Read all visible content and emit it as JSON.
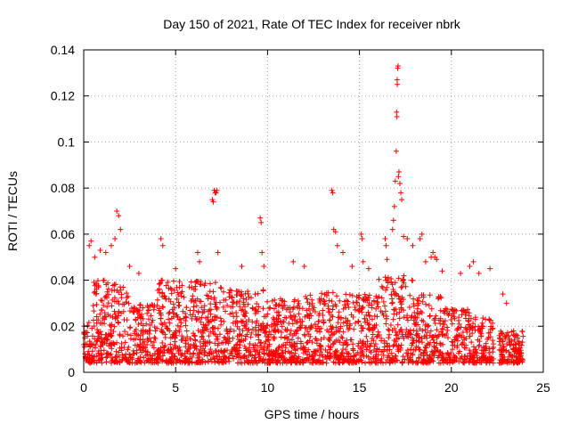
{
  "chart_data": {
    "type": "scatter",
    "title": "Day 150 of 2021, Rate Of TEC Index for receiver nbrk",
    "xlabel": "GPS time / hours",
    "ylabel": "ROTI / TECUs",
    "xlim": [
      0,
      25
    ],
    "ylim": [
      0,
      0.14
    ],
    "x_ticks": [
      0,
      5,
      10,
      15,
      20,
      25
    ],
    "x_tick_labels": [
      "0",
      "5",
      "10",
      "15",
      "20",
      "25"
    ],
    "y_ticks": [
      0,
      0.02,
      0.04,
      0.06,
      0.08,
      0.1,
      0.12,
      0.14
    ],
    "y_tick_labels": [
      "0",
      "0.02",
      "0.04",
      "0.06",
      "0.08",
      "0.1",
      "0.12",
      "0.14"
    ],
    "grid": true,
    "marker": "+",
    "color": "#ff0000",
    "series": [
      {
        "name": "ROTI",
        "points": [
          [
            0.3,
            0.055
          ],
          [
            0.4,
            0.057
          ],
          [
            0.6,
            0.05
          ],
          [
            0.9,
            0.053
          ],
          [
            1.2,
            0.052
          ],
          [
            1.5,
            0.055
          ],
          [
            1.7,
            0.058
          ],
          [
            1.8,
            0.07
          ],
          [
            1.9,
            0.068
          ],
          [
            2.0,
            0.062
          ],
          [
            2.5,
            0.046
          ],
          [
            3.0,
            0.043
          ],
          [
            4.2,
            0.058
          ],
          [
            4.3,
            0.055
          ],
          [
            5.0,
            0.045
          ],
          [
            6.2,
            0.052
          ],
          [
            6.3,
            0.048
          ],
          [
            7.0,
            0.075
          ],
          [
            7.05,
            0.074
          ],
          [
            7.1,
            0.079
          ],
          [
            7.15,
            0.078
          ],
          [
            7.2,
            0.078
          ],
          [
            7.25,
            0.079
          ],
          [
            7.3,
            0.052
          ],
          [
            8.6,
            0.046
          ],
          [
            9.6,
            0.067
          ],
          [
            9.65,
            0.065
          ],
          [
            9.7,
            0.052
          ],
          [
            9.8,
            0.046
          ],
          [
            11.4,
            0.048
          ],
          [
            12.0,
            0.046
          ],
          [
            13.5,
            0.079
          ],
          [
            13.55,
            0.078
          ],
          [
            13.6,
            0.062
          ],
          [
            13.7,
            0.061
          ],
          [
            13.8,
            0.055
          ],
          [
            14.1,
            0.052
          ],
          [
            14.6,
            0.046
          ],
          [
            15.1,
            0.06
          ],
          [
            15.15,
            0.058
          ],
          [
            15.2,
            0.048
          ],
          [
            15.5,
            0.045
          ],
          [
            16.4,
            0.058
          ],
          [
            16.45,
            0.055
          ],
          [
            16.5,
            0.049
          ],
          [
            16.8,
            0.062
          ],
          [
            16.85,
            0.066
          ],
          [
            16.9,
            0.072
          ],
          [
            16.95,
            0.083
          ],
          [
            17.0,
            0.096
          ],
          [
            17.02,
            0.113
          ],
          [
            17.04,
            0.111
          ],
          [
            17.05,
            0.127
          ],
          [
            17.06,
            0.125
          ],
          [
            17.08,
            0.132
          ],
          [
            17.1,
            0.133
          ],
          [
            17.12,
            0.085
          ],
          [
            17.15,
            0.087
          ],
          [
            17.2,
            0.082
          ],
          [
            17.25,
            0.078
          ],
          [
            17.3,
            0.075
          ],
          [
            17.4,
            0.059
          ],
          [
            17.6,
            0.058
          ],
          [
            17.9,
            0.055
          ],
          [
            18.3,
            0.058
          ],
          [
            18.4,
            0.06
          ],
          [
            18.6,
            0.048
          ],
          [
            18.9,
            0.05
          ],
          [
            19.0,
            0.052
          ],
          [
            19.1,
            0.05
          ],
          [
            19.2,
            0.049
          ],
          [
            19.5,
            0.044
          ],
          [
            20.5,
            0.043
          ],
          [
            21.0,
            0.046
          ],
          [
            21.2,
            0.048
          ],
          [
            21.5,
            0.043
          ],
          [
            22.1,
            0.045
          ],
          [
            22.8,
            0.034
          ],
          [
            23.0,
            0.03
          ]
        ]
      }
    ]
  }
}
